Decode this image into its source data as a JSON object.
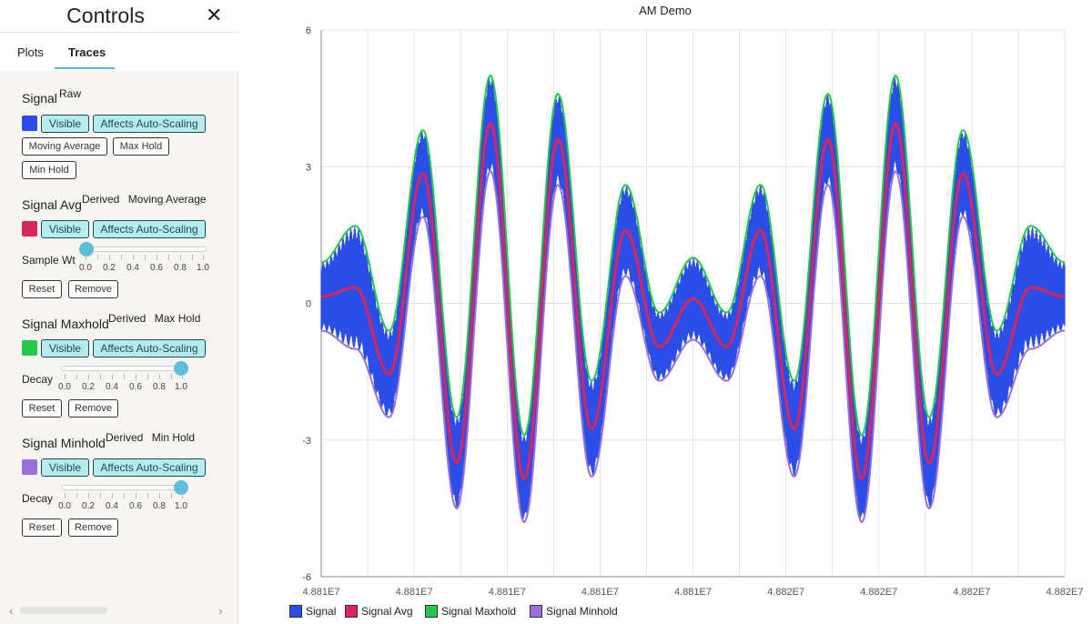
{
  "sidebar": {
    "title": "Controls",
    "close_icon": "close-icon",
    "tabs": [
      {
        "label": "Plots"
      },
      {
        "label": "Traces",
        "active": true
      }
    ],
    "traces": [
      {
        "name": "Signal",
        "tags": [
          "Raw"
        ],
        "color": "#2b4de8",
        "visible_label": "Visible",
        "autoscale_label": "Affects Auto-Scaling",
        "actions": [
          "Moving Average",
          "Max Hold",
          "Min Hold"
        ]
      },
      {
        "name": "Signal Avg",
        "tags": [
          "Derived",
          "Moving Average"
        ],
        "color": "#d9265a",
        "visible_label": "Visible",
        "autoscale_label": "Affects Auto-Scaling",
        "slider": {
          "label": "Sample Wt",
          "value": 0.0,
          "ticks": [
            "0.0",
            "0.2",
            "0.4",
            "0.6",
            "0.8",
            "1.0"
          ]
        },
        "reset_label": "Reset",
        "remove_label": "Remove"
      },
      {
        "name": "Signal Maxhold",
        "tags": [
          "Derived",
          "Max Hold"
        ],
        "color": "#22c94a",
        "visible_label": "Visible",
        "autoscale_label": "Affects Auto-Scaling",
        "slider": {
          "label": "Decay",
          "value": 1.0,
          "ticks": [
            "0.0",
            "0.2",
            "0.4",
            "0.6",
            "0.8",
            "1.0"
          ]
        },
        "reset_label": "Reset",
        "remove_label": "Remove"
      },
      {
        "name": "Signal Minhold",
        "tags": [
          "Derived",
          "Min Hold"
        ],
        "color": "#9a6fdc",
        "visible_label": "Visible",
        "autoscale_label": "Affects Auto-Scaling",
        "slider": {
          "label": "Decay",
          "value": 1.0,
          "ticks": [
            "0.0",
            "0.2",
            "0.4",
            "0.6",
            "0.8",
            "1.0"
          ]
        },
        "reset_label": "Reset",
        "remove_label": "Remove"
      }
    ],
    "scroll_left_icon": "chevron-left-icon",
    "scroll_right_icon": "chevron-right-icon"
  },
  "chart_data": {
    "type": "line",
    "title": "AM Demo",
    "xlabel": "",
    "ylabel": "",
    "ylim": [
      -6,
      6
    ],
    "y_ticks": [
      "6",
      "3",
      "0",
      "-3",
      "-6"
    ],
    "x_tick_labels": [
      "4.881E7",
      "4.881E7",
      "4.881E7",
      "4.881E7",
      "4.881E7",
      "4.882E7",
      "4.882E7",
      "4.882E7",
      "4.882E7"
    ],
    "grid": true,
    "legend_placement": "bottom",
    "series": [
      {
        "name": "Signal",
        "color": "#2b4de8",
        "note": "dense raw samples oscillating around the moving average; envelope peaks (local extrema of max/min)",
        "peaks": [
          {
            "max": 1.7,
            "min": -1.0
          },
          {
            "max": -0.6,
            "min": -2.5
          },
          {
            "max": 3.8,
            "min": 1.9
          },
          {
            "max": -2.5,
            "min": -4.5
          },
          {
            "max": 5.0,
            "min": 2.9
          },
          {
            "max": -2.9,
            "min": -4.8
          },
          {
            "max": 4.6,
            "min": 2.6
          },
          {
            "max": -1.7,
            "min": -3.8
          },
          {
            "max": 2.6,
            "min": 0.6
          },
          {
            "max": -0.2,
            "min": -1.7
          },
          {
            "max": 1.0,
            "min": -0.8
          },
          {
            "max": -0.2,
            "min": -1.7
          },
          {
            "max": 2.6,
            "min": 0.6
          },
          {
            "max": -1.7,
            "min": -3.8
          },
          {
            "max": 4.6,
            "min": 2.6
          },
          {
            "max": -2.9,
            "min": -4.8
          },
          {
            "max": 5.0,
            "min": 2.9
          },
          {
            "max": -2.5,
            "min": -4.5
          },
          {
            "max": 3.8,
            "min": 1.9
          },
          {
            "max": -0.6,
            "min": -2.5
          },
          {
            "max": 1.7,
            "min": -1.0
          }
        ]
      },
      {
        "name": "Signal Avg",
        "color": "#d9265a",
        "x": [
          0,
          0.075,
          0.15,
          0.225,
          0.3,
          0.375,
          0.45,
          0.525,
          0.6,
          0.675,
          0.75,
          0.825,
          0.9,
          0.975,
          1.0
        ],
        "values": [
          0.0,
          0.8,
          -1.8,
          2.8,
          -3.5,
          4.0,
          -3.5,
          3.5,
          -2.0,
          1.9,
          -0.8,
          -0.3,
          -0.8,
          1.9,
          0.0
        ]
      },
      {
        "name": "Signal Maxhold",
        "color": "#22c94a"
      },
      {
        "name": "Signal Minhold",
        "color": "#9a6fdc"
      }
    ]
  }
}
